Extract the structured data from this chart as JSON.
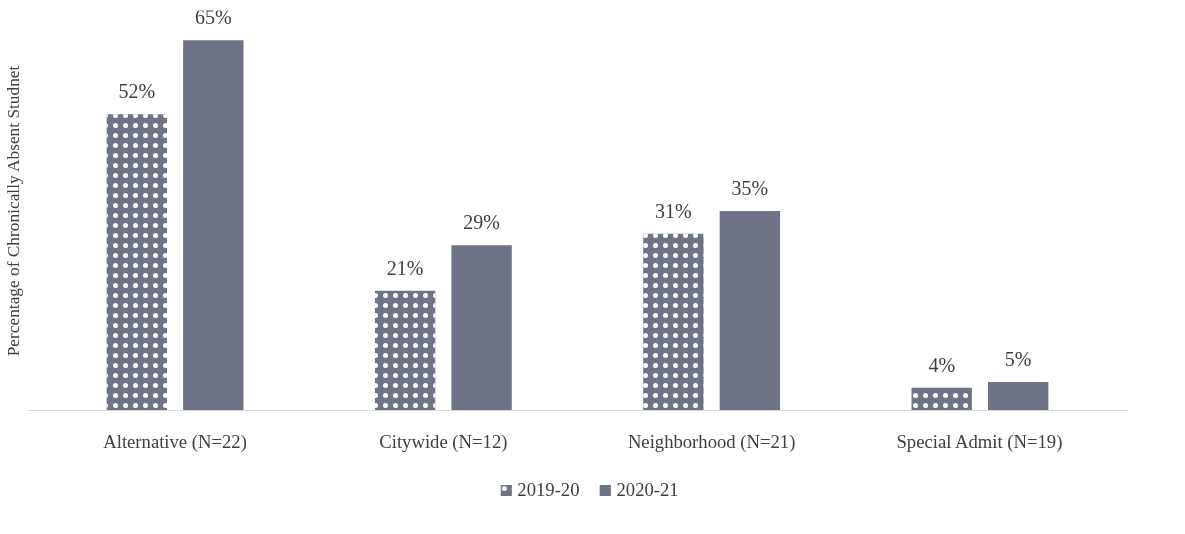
{
  "chart_data": {
    "type": "bar",
    "ylabel": "Percentage of Chronically Absent Studnet",
    "categories": [
      "Alternative (N=22)",
      "Citywide (N=12)",
      "Neighborhood (N=21)",
      "Special Admit (N=19)"
    ],
    "series": [
      {
        "name": "2019-20",
        "color": "#6e7386",
        "values": [
          52,
          21,
          31,
          4
        ],
        "value_labels": [
          "52%",
          "21%",
          "31%",
          "4%"
        ]
      },
      {
        "name": "2020-21",
        "color": "#6e7386",
        "values": [
          65,
          29,
          35,
          5
        ],
        "value_labels": [
          "65%",
          "29%",
          "35%",
          "5%"
        ]
      }
    ],
    "legend": "bottom"
  }
}
